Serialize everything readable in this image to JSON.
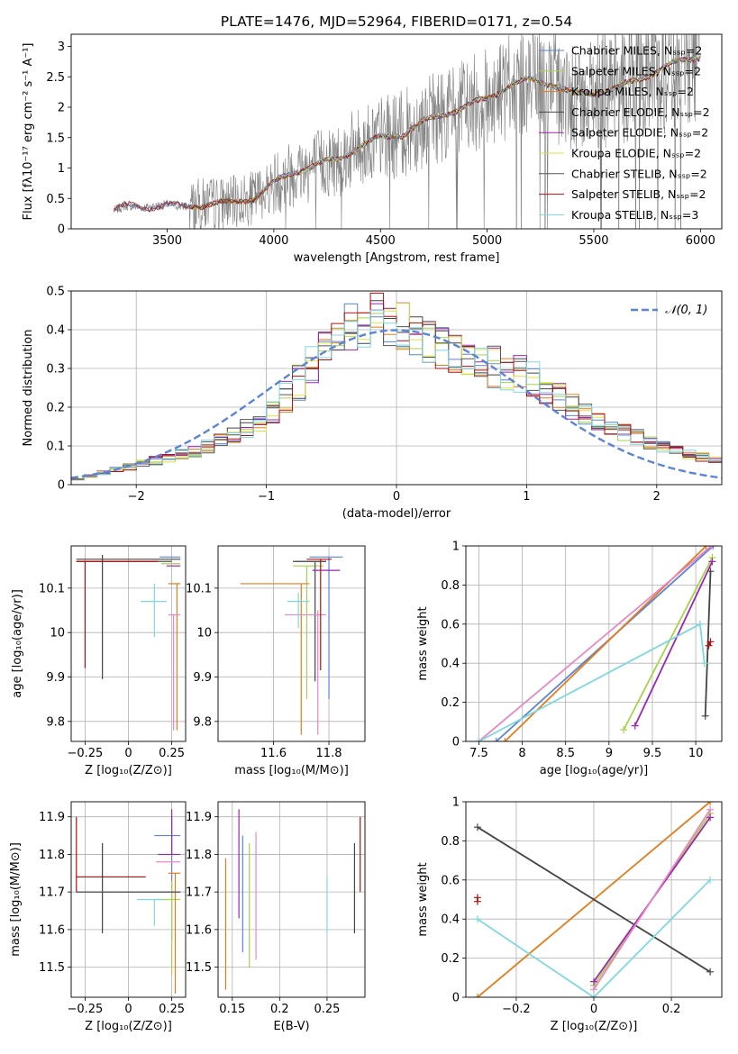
{
  "chart_data": [
    {
      "type": "line",
      "panel": "spectrum",
      "title": "PLATE=1476, MJD=52964, FIBERID=0171, z=0.54",
      "xlabel": "wavelength [Angstrom, rest frame]",
      "ylabel": "Flux [fλ10⁻¹⁷ erg cm⁻² s⁻¹ A⁻¹]",
      "xlim": [
        3050,
        6100
      ],
      "ylim": [
        0,
        3.2
      ],
      "xticks": [
        3500,
        4000,
        4500,
        5000,
        5500,
        6000
      ],
      "yticks": [
        0.0,
        0.5,
        1.0,
        1.5,
        2.0,
        2.5,
        3.0
      ],
      "grid": false,
      "legend_position": "top-right",
      "series": [
        {
          "name": "Chabrier MILES, Nₛₛₚ=2",
          "color": "#5b84d6"
        },
        {
          "name": "Salpeter MILES, Nₛₛₚ=2",
          "color": "#a7d24e"
        },
        {
          "name": "Kroupa MILES, Nₛₛₚ=2",
          "color": "#e27d1e"
        },
        {
          "name": "Chabrier ELODIE, Nₛₛₚ=2",
          "color": "#444444"
        },
        {
          "name": "Salpeter ELODIE, Nₛₛₚ=2",
          "color": "#9b27b0"
        },
        {
          "name": "Kroupa ELODIE, Nₛₛₚ=2",
          "color": "#dfdf43"
        },
        {
          "name": "Chabrier STELIB, Nₛₛₚ=2",
          "color": "#555555"
        },
        {
          "name": "Salpeter STELIB, Nₛₛₚ=2",
          "color": "#b01010"
        },
        {
          "name": "Kroupa STELIB, Nₛₛₚ=3",
          "color": "#7fd8de"
        }
      ],
      "continuum": {
        "x": [
          3250,
          3300,
          3400,
          3500,
          3600,
          3700,
          3800,
          3900,
          4000,
          4100,
          4200,
          4300,
          4400,
          4500,
          4600,
          4700,
          4800,
          4900,
          5000,
          5100,
          5200,
          5300,
          5400,
          5500,
          5600,
          5700,
          5800,
          5900,
          6000
        ],
        "y": [
          0.3,
          0.38,
          0.35,
          0.4,
          0.36,
          0.42,
          0.42,
          0.5,
          0.75,
          0.95,
          1.05,
          1.15,
          1.35,
          1.5,
          1.55,
          1.75,
          1.9,
          2.0,
          2.15,
          2.35,
          2.45,
          2.4,
          2.2,
          2.25,
          2.3,
          2.45,
          2.6,
          2.75,
          2.85
        ]
      }
    },
    {
      "type": "line",
      "panel": "residual-histogram",
      "xlabel": "(data-model)/error",
      "ylabel": "Normed distribution",
      "xlim": [
        -2.5,
        2.5
      ],
      "ylim": [
        0,
        0.5
      ],
      "xticks": [
        -2,
        -1,
        0,
        1,
        2
      ],
      "yticks": [
        0.0,
        0.1,
        0.2,
        0.3,
        0.4,
        0.5
      ],
      "grid": true,
      "legend_position": "top-right",
      "legend": "𝒩(0, 1)",
      "gaussian_color": "#5b84d6",
      "bin_width": 0.1,
      "hist_base": {
        "x": [
          -2.5,
          -2.0,
          -1.5,
          -1.0,
          -0.5,
          -0.25,
          0.0,
          0.25,
          0.5,
          1.0,
          1.5,
          2.0,
          2.5
        ],
        "y": [
          0.01,
          0.05,
          0.09,
          0.17,
          0.36,
          0.42,
          0.42,
          0.37,
          0.33,
          0.28,
          0.17,
          0.1,
          0.06
        ]
      }
    },
    {
      "type": "scatter",
      "panel": "age-vs-Z",
      "xlabel": "Z [log₁₀(Z/Z⊙)]",
      "ylabel": "age  [log₁₀(age/yr)]",
      "xlim": [
        -0.33,
        0.33
      ],
      "ylim": [
        9.755,
        10.195
      ],
      "xticks": [
        -0.25,
        0.0,
        0.25
      ],
      "yticks": [
        9.8,
        9.9,
        10.0,
        10.1
      ],
      "grid": true,
      "crosses": [
        {
          "x": 0.25,
          "xerr": [
            0.07,
            0.05
          ],
          "y": 10.17,
          "yerr": [
            0.0,
            0.0
          ],
          "color": "#5b84d6"
        },
        {
          "x": 0.25,
          "xerr": [
            0.06,
            0.05
          ],
          "y": 10.155,
          "yerr": [
            0.0,
            0.0
          ],
          "color": "#a7d24e"
        },
        {
          "x": 0.28,
          "xerr": [
            0.05,
            0.02
          ],
          "y": 10.11,
          "yerr": [
            0.33,
            0.0
          ],
          "color": "#e27d1e"
        },
        {
          "x": -0.15,
          "xerr": [
            0.15,
            0.45
          ],
          "y": 10.165,
          "yerr": [
            0.27,
            0.01
          ],
          "color": "#444444"
        },
        {
          "x": 0.27,
          "xerr": [
            0.05,
            0.03
          ],
          "y": 10.15,
          "yerr": [
            0.0,
            0.0
          ],
          "color": "#9b27b0"
        },
        {
          "x": 0.26,
          "xerr": [
            0.03,
            0.04
          ],
          "y": 10.04,
          "yerr": [
            0.26,
            0.0
          ],
          "color": "#e887c3"
        },
        {
          "x": -0.15,
          "xerr": [
            0.15,
            0.4
          ],
          "y": 10.16,
          "yerr": [
            0.0,
            0.0
          ],
          "color": "#555555"
        },
        {
          "x": -0.25,
          "xerr": [
            0.05,
            0.42
          ],
          "y": 10.16,
          "yerr": [
            0.24,
            0.0
          ],
          "color": "#b01010"
        },
        {
          "x": 0.15,
          "xerr": [
            0.08,
            0.07
          ],
          "y": 10.07,
          "yerr": [
            0.08,
            0.04
          ],
          "color": "#7fd8de"
        }
      ]
    },
    {
      "type": "scatter",
      "panel": "age-vs-mass",
      "xlabel": "mass [log₁₀(M/M⊙)]",
      "ylabel": "",
      "xlim": [
        11.4,
        11.93
      ],
      "ylim": [
        9.755,
        10.195
      ],
      "xticks": [
        11.6,
        11.8
      ],
      "yticks": [
        9.8,
        9.9,
        10.0,
        10.1
      ],
      "grid": true,
      "crosses": [
        {
          "x": 11.8,
          "xerr": [
            0.07,
            0.05
          ],
          "y": 10.17,
          "yerr": [
            0.32,
            0.0
          ],
          "color": "#5b84d6"
        },
        {
          "x": 11.72,
          "xerr": [
            0.05,
            0.06
          ],
          "y": 10.15,
          "yerr": [
            0.3,
            0.0
          ],
          "color": "#a7d24e"
        },
        {
          "x": 11.7,
          "xerr": [
            0.22,
            0.03
          ],
          "y": 10.11,
          "yerr": [
            0.34,
            0.0
          ],
          "color": "#e27d1e"
        },
        {
          "x": 11.75,
          "xerr": [
            0.08,
            0.04
          ],
          "y": 10.16,
          "yerr": [
            0.27,
            0.0
          ],
          "color": "#444444"
        },
        {
          "x": 11.8,
          "xerr": [
            0.06,
            0.04
          ],
          "y": 10.14,
          "yerr": [
            0.0,
            0.0
          ],
          "color": "#9b27b0"
        },
        {
          "x": 11.76,
          "xerr": [
            0.12,
            0.03
          ],
          "y": 10.04,
          "yerr": [
            0.27,
            0.01
          ],
          "color": "#e887c3"
        },
        {
          "x": 11.75,
          "xerr": [
            0.07,
            0.04
          ],
          "y": 10.16,
          "yerr": [
            0.0,
            0.0
          ],
          "color": "#555555"
        },
        {
          "x": 11.77,
          "xerr": [
            0.05,
            0.04
          ],
          "y": 10.165,
          "yerr": [
            0.25,
            0.0
          ],
          "color": "#b01010"
        },
        {
          "x": 11.69,
          "xerr": [
            0.04,
            0.04
          ],
          "y": 10.07,
          "yerr": [
            0.06,
            0.02
          ],
          "color": "#7fd8de"
        }
      ]
    },
    {
      "type": "line",
      "panel": "mass-weight-vs-age",
      "xlabel": "age  [log₁₀(age/yr)]",
      "ylabel": "mass weight",
      "xlim": [
        7.35,
        10.3
      ],
      "ylim": [
        0.0,
        1.0
      ],
      "xticks": [
        7.5,
        8.0,
        8.5,
        9.0,
        9.5,
        10.0
      ],
      "yticks": [
        0.0,
        0.2,
        0.4,
        0.6,
        0.8,
        1.0
      ],
      "grid": true,
      "series": [
        {
          "name": "",
          "x": [
            7.7,
            10.2
          ],
          "y": [
            0.0,
            1.0
          ],
          "color": "#5b84d6"
        },
        {
          "name": "",
          "x": [
            9.17,
            10.19
          ],
          "y": [
            0.06,
            0.94
          ],
          "color": "#a7d24e"
        },
        {
          "name": "",
          "x": [
            7.8,
            10.12
          ],
          "y": [
            0.0,
            1.0
          ],
          "color": "#e27d1e"
        },
        {
          "name": "",
          "x": [
            10.11,
            10.17
          ],
          "y": [
            0.13,
            0.87
          ],
          "color": "#444444"
        },
        {
          "name": "",
          "x": [
            9.3,
            10.19
          ],
          "y": [
            0.08,
            0.92
          ],
          "color": "#9b27b0"
        },
        {
          "name": "",
          "x": [
            7.5,
            10.18
          ],
          "y": [
            0.0,
            1.0
          ],
          "color": "#e887c3"
        },
        {
          "name": "",
          "x": [
            10.15,
            10.17
          ],
          "y": [
            0.49,
            0.51
          ],
          "color": "#b01010"
        },
        {
          "name": "",
          "x": [
            7.5,
            10.05,
            10.1
          ],
          "y": [
            0.0,
            0.6,
            0.4
          ],
          "color": "#7fd8de"
        }
      ]
    },
    {
      "type": "scatter",
      "panel": "mass-vs-Z",
      "xlabel": "Z [log₁₀(Z/Z⊙)]",
      "ylabel": "mass [log₁₀(M/M⊙)]",
      "xlim": [
        -0.33,
        0.33
      ],
      "ylim": [
        11.42,
        11.94
      ],
      "xticks": [
        -0.25,
        0.0,
        0.25
      ],
      "yticks": [
        11.5,
        11.6,
        11.7,
        11.8,
        11.9
      ],
      "grid": true,
      "crosses": [
        {
          "x": 0.25,
          "xerr": [
            0.1,
            0.05
          ],
          "y": 11.85,
          "yerr": [
            0.28,
            0.05
          ],
          "color": "#5b84d6"
        },
        {
          "x": 0.25,
          "xerr": [
            0.1,
            0.05
          ],
          "y": 11.68,
          "yerr": [
            0.2,
            0.05
          ],
          "color": "#a7d24e"
        },
        {
          "x": 0.27,
          "xerr": [
            0.04,
            0.03
          ],
          "y": 11.75,
          "yerr": [
            0.32,
            0.0
          ],
          "color": "#e27d1e"
        },
        {
          "x": -0.15,
          "xerr": [
            0.15,
            0.45
          ],
          "y": 11.7,
          "yerr": [
            0.11,
            0.13
          ],
          "color": "#444444"
        },
        {
          "x": 0.25,
          "xerr": [
            0.08,
            0.05
          ],
          "y": 11.8,
          "yerr": [
            0.0,
            0.12
          ],
          "color": "#9b27b0"
        },
        {
          "x": 0.22,
          "xerr": [
            0.06,
            0.08
          ],
          "y": 11.78,
          "yerr": [
            0.0,
            0.0
          ],
          "color": "#e887c3"
        },
        {
          "x": -0.15,
          "xerr": [
            0.15,
            0.45
          ],
          "y": 11.7,
          "yerr": [
            0.0,
            0.0
          ],
          "color": "#555555"
        },
        {
          "x": -0.3,
          "xerr": [
            0.0,
            0.4
          ],
          "y": 11.74,
          "yerr": [
            0.04,
            0.16
          ],
          "color": "#b01010"
        },
        {
          "x": 0.15,
          "xerr": [
            0.1,
            0.05
          ],
          "y": 11.68,
          "yerr": [
            0.07,
            0.0
          ],
          "color": "#7fd8de"
        }
      ]
    },
    {
      "type": "scatter",
      "panel": "mass-vs-EBV",
      "xlabel": "E(B-V)",
      "ylabel": "",
      "xlim": [
        0.135,
        0.29
      ],
      "ylim": [
        11.42,
        11.94
      ],
      "xticks": [
        0.15,
        0.2,
        0.25
      ],
      "yticks": [
        11.5,
        11.6,
        11.7,
        11.8,
        11.9
      ],
      "grid": true,
      "errbars": [
        {
          "x": 0.143,
          "y0": 11.44,
          "y1": 11.79,
          "color": "#e27d1e"
        },
        {
          "x": 0.157,
          "y0": 11.63,
          "y1": 11.92,
          "color": "#9b27b0"
        },
        {
          "x": 0.161,
          "y0": 11.54,
          "y1": 11.85,
          "color": "#5b84d6"
        },
        {
          "x": 0.168,
          "y0": 11.5,
          "y1": 11.83,
          "color": "#a7d24e"
        },
        {
          "x": 0.175,
          "y0": 11.52,
          "y1": 11.86,
          "color": "#e887c3"
        },
        {
          "x": 0.25,
          "y0": 11.59,
          "y1": 11.74,
          "color": "#7fd8de"
        },
        {
          "x": 0.279,
          "y0": 11.59,
          "y1": 11.83,
          "color": "#444444"
        },
        {
          "x": 0.285,
          "y0": 11.7,
          "y1": 11.9,
          "color": "#b01010"
        }
      ]
    },
    {
      "type": "line",
      "panel": "mass-weight-vs-Z",
      "xlabel": "Z [log₁₀(Z/Z⊙)]",
      "ylabel": "mass weight",
      "xlim": [
        -0.33,
        0.33
      ],
      "ylim": [
        0.0,
        1.0
      ],
      "xticks": [
        -0.2,
        0.0,
        0.2
      ],
      "yticks": [
        0.0,
        0.2,
        0.4,
        0.6,
        0.8,
        1.0
      ],
      "grid": true,
      "series": [
        {
          "name": "",
          "x": [
            0.0,
            0.3
          ],
          "y": [
            0.06,
            0.94
          ],
          "color": "#a7d24e"
        },
        {
          "name": "",
          "x": [
            -0.3,
            0.3
          ],
          "y": [
            0.0,
            1.0
          ],
          "color": "#e27d1e"
        },
        {
          "name": "",
          "x": [
            -0.3,
            0.3
          ],
          "y": [
            0.87,
            0.13
          ],
          "color": "#444444"
        },
        {
          "name": "",
          "x": [
            0.0,
            0.3
          ],
          "y": [
            0.08,
            0.92
          ],
          "color": "#9b27b0"
        },
        {
          "name": "",
          "x": [
            0.0,
            0.3
          ],
          "y": [
            0.04,
            0.96
          ],
          "color": "#e887c3"
        },
        {
          "name": "",
          "x": [
            -0.3,
            -0.3
          ],
          "y": [
            0.49,
            0.51
          ],
          "color": "#b01010"
        },
        {
          "name": "",
          "x": [
            -0.3,
            0.0,
            0.3
          ],
          "y": [
            0.4,
            0.0,
            0.6
          ],
          "color": "#7fd8de"
        }
      ]
    }
  ]
}
